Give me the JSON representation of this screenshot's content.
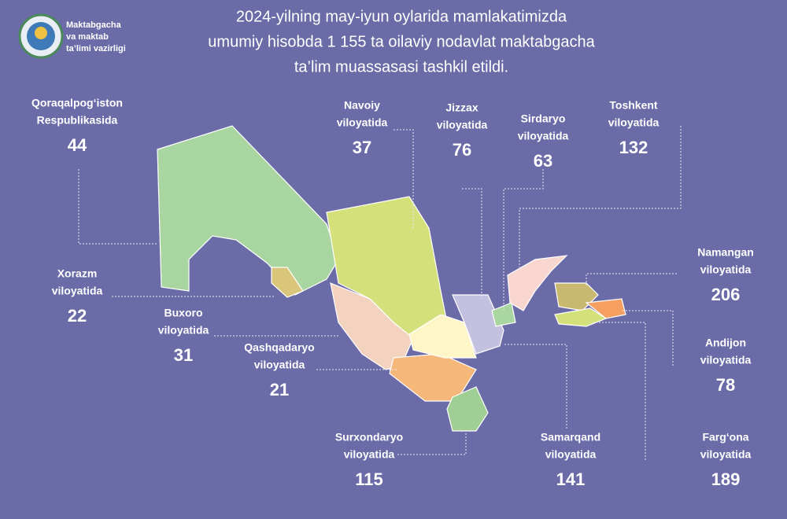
{
  "logo": [
    "Maktabgacha",
    "va maktab",
    "ta’limi vazirligi"
  ],
  "title": [
    "2024-yilning may-iyun oylarida mamlakatimizda",
    "umumiy hisobda 1 155 ta oilaviy nodavlat maktabgacha",
    "ta’lim muassasasi tashkil etildi."
  ],
  "regions": [
    {
      "name": [
        "Qoraqalpog‘iston",
        "Respublikasida"
      ],
      "value": 44
    },
    {
      "name": [
        "Navoiy",
        "viloyatida"
      ],
      "value": 37
    },
    {
      "name": [
        "Jizzax",
        "viloyatida"
      ],
      "value": 76
    },
    {
      "name": [
        "Sirdaryo",
        "viloyatida"
      ],
      "value": 63
    },
    {
      "name": [
        "Toshkent",
        "viloyatida"
      ],
      "value": 132
    },
    {
      "name": [
        "Namangan",
        "viloyatida"
      ],
      "value": 206
    },
    {
      "name": [
        "Xorazm",
        "viloyatida"
      ],
      "value": 22
    },
    {
      "name": [
        "Buxoro",
        "viloyatida"
      ],
      "value": 31
    },
    {
      "name": [
        "Qashqadaryo",
        "viloyatida"
      ],
      "value": 21
    },
    {
      "name": [
        "Andijon",
        "viloyatida"
      ],
      "value": 78
    },
    {
      "name": [
        "Surxondaryo",
        "viloyatida"
      ],
      "value": 115
    },
    {
      "name": [
        "Samarqand",
        "viloyatida"
      ],
      "value": 141
    },
    {
      "name": [
        "Farg‘ona",
        "viloyatida"
      ],
      "value": 189
    }
  ]
}
